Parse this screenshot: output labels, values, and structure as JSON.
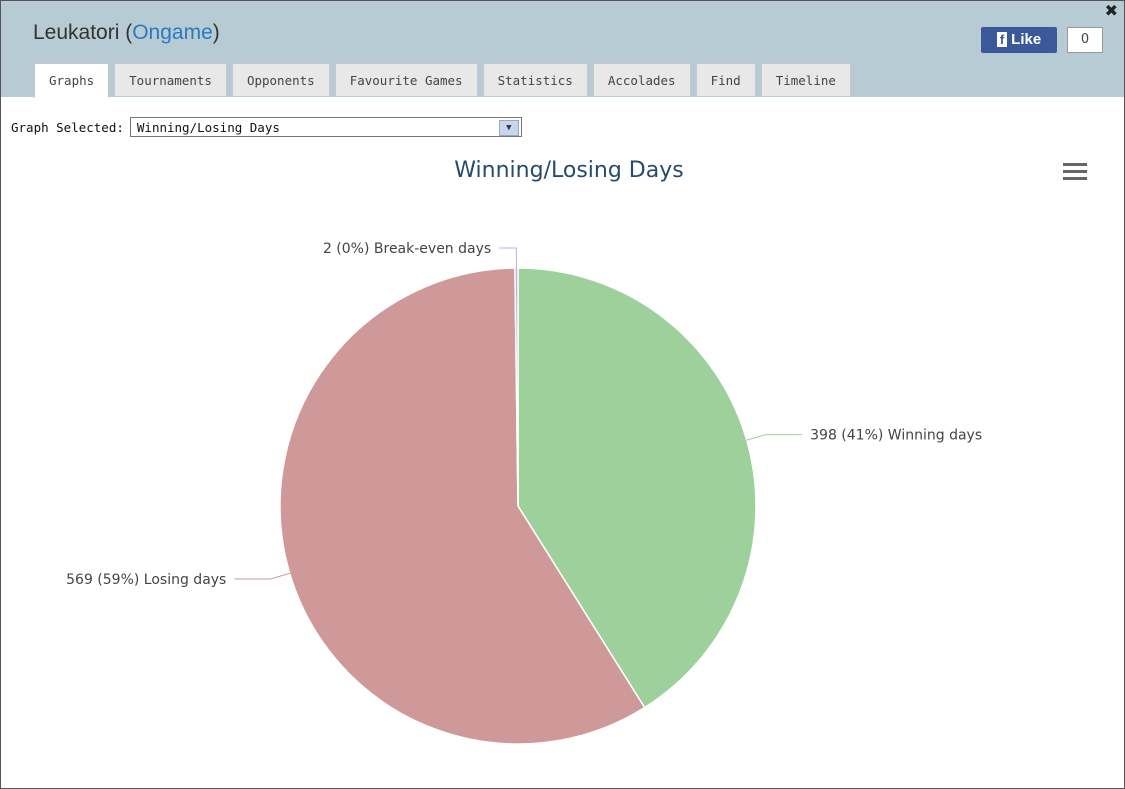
{
  "header": {
    "title_prefix": "Leukatori (",
    "site_link": "Ongame",
    "title_suffix": ")",
    "like_label": "Like",
    "like_count": "0"
  },
  "tabs": [
    "Graphs",
    "Tournaments",
    "Opponents",
    "Favourite Games",
    "Statistics",
    "Accolades",
    "Find",
    "Timeline"
  ],
  "graph_select": {
    "label": "Graph Selected:",
    "selected": "Winning/Losing Days"
  },
  "chart_data": {
    "type": "pie",
    "title": "Winning/Losing Days",
    "categories": [
      "Winning days",
      "Losing days",
      "Break-even days"
    ],
    "values": [
      398,
      569,
      2
    ],
    "value_labels": [
      "398 (41%)",
      "569 (59%)",
      "2 (0%)"
    ],
    "colors": [
      "#9dd09a",
      "#cf9999",
      "#b6b4dc"
    ]
  }
}
